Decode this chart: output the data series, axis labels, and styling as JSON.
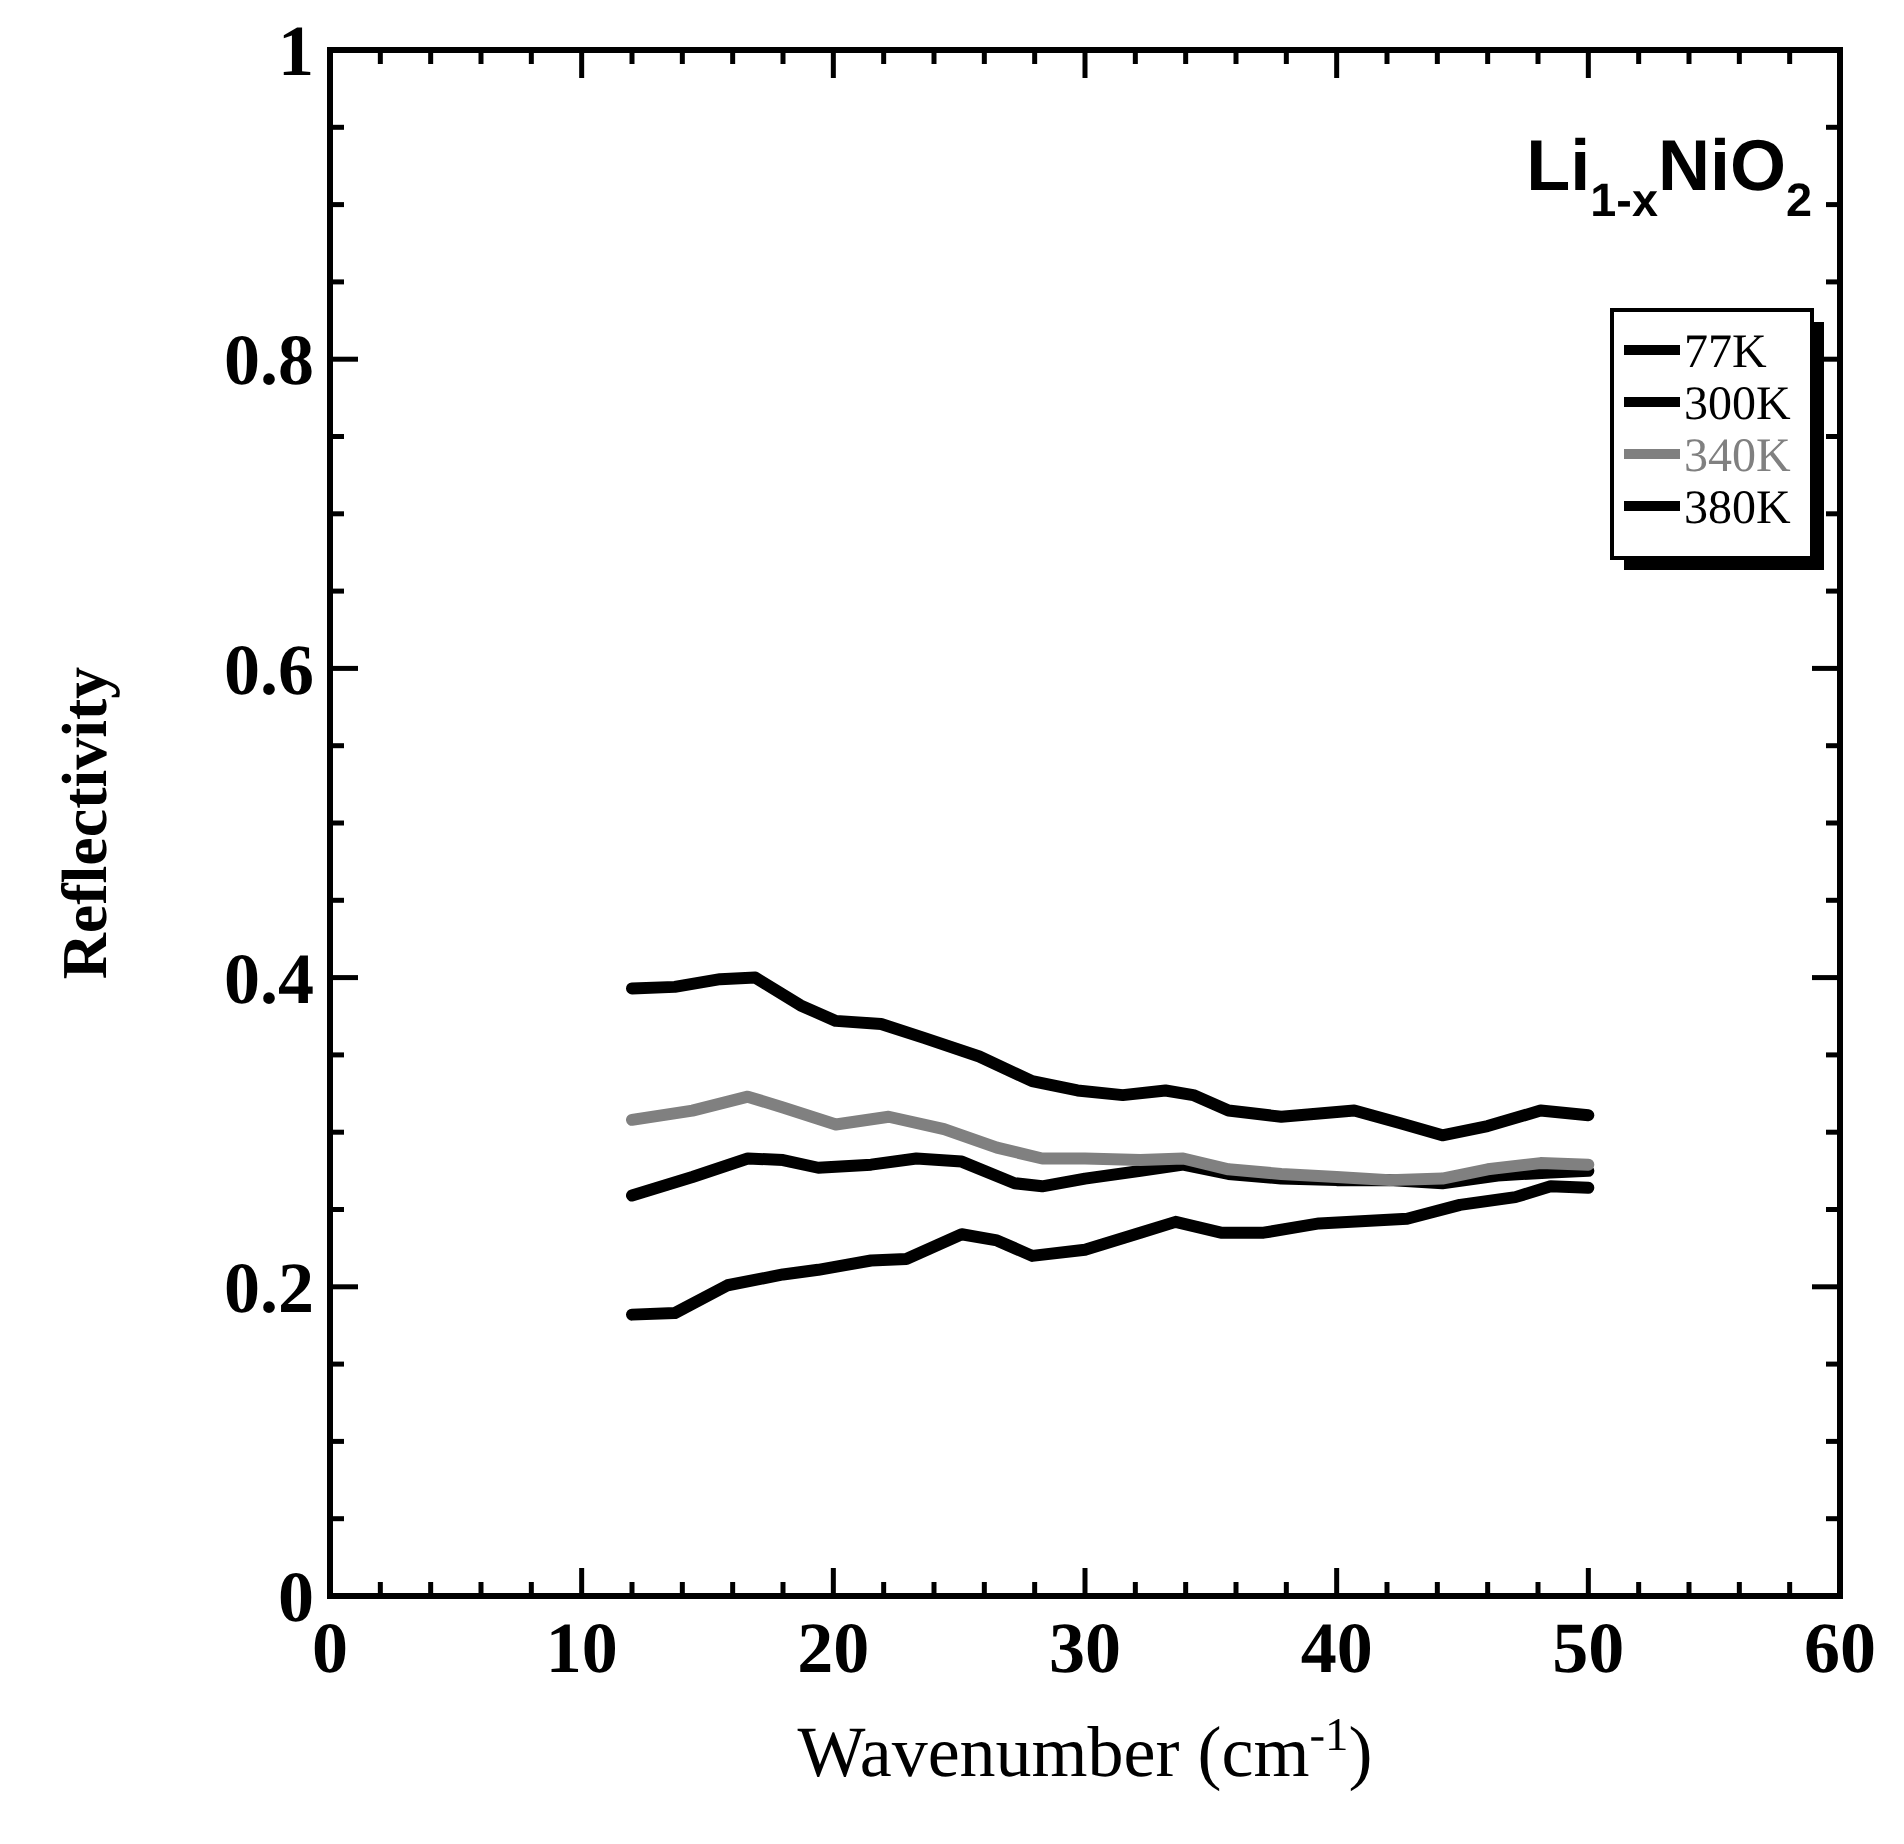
{
  "chart_data": {
    "type": "line",
    "xlabel": "Wavenumber  (cm$^{-1}$)",
    "ylabel": "Reflectivity",
    "annotations": [
      "Li$_{1-x}$NiO$_{2}$"
    ],
    "xlim": [
      0,
      60
    ],
    "ylim": [
      0,
      1
    ],
    "xticks": [
      0,
      {
        "value": 2,
        "label": null
      },
      {
        "value": 4,
        "label": null
      },
      {
        "value": 6,
        "label": null
      },
      {
        "value": 8,
        "label": null
      },
      10,
      {
        "value": 12,
        "label": null
      },
      {
        "value": 14,
        "label": null
      },
      {
        "value": 16,
        "label": null
      },
      {
        "value": 18,
        "label": null
      },
      20,
      {
        "value": 22,
        "label": null
      },
      {
        "value": 24,
        "label": null
      },
      {
        "value": 26,
        "label": null
      },
      {
        "value": 28,
        "label": null
      },
      30,
      {
        "value": 32,
        "label": null
      },
      {
        "value": 34,
        "label": null
      },
      {
        "value": 36,
        "label": null
      },
      {
        "value": 38,
        "label": null
      },
      40,
      {
        "value": 42,
        "label": null
      },
      {
        "value": 44,
        "label": null
      },
      {
        "value": 46,
        "label": null
      },
      {
        "value": 48,
        "label": null
      },
      50,
      {
        "value": 52,
        "label": null
      },
      {
        "value": 54,
        "label": null
      },
      {
        "value": 56,
        "label": null
      },
      {
        "value": 58,
        "label": null
      },
      60
    ],
    "yticks": [
      0,
      {
        "value": 0.05,
        "label": null
      },
      {
        "value": 0.1,
        "label": null
      },
      {
        "value": 0.15,
        "label": null
      },
      0.2,
      {
        "value": 0.25,
        "label": null
      },
      {
        "value": 0.3,
        "label": null
      },
      {
        "value": 0.35,
        "label": null
      },
      0.4,
      {
        "value": 0.45,
        "label": null
      },
      {
        "value": 0.5,
        "label": null
      },
      {
        "value": 0.55,
        "label": null
      },
      0.6,
      {
        "value": 0.65,
        "label": null
      },
      {
        "value": 0.7,
        "label": null
      },
      {
        "value": 0.75,
        "label": null
      },
      0.8,
      {
        "value": 0.85,
        "label": null
      },
      {
        "value": 0.9,
        "label": null
      },
      {
        "value": 0.95,
        "label": null
      },
      1
    ],
    "grid": false,
    "legend": "top right",
    "line_style": "solid",
    "series": [
      {
        "name": "77K",
        "color": "#000000",
        "x": [
          12,
          13.7,
          15.5,
          16.9,
          18.7,
          20.1,
          21.9,
          23.6,
          25.8,
          27.9,
          29.7,
          31.5,
          33.2,
          34.3,
          35.7,
          37.8,
          40.7,
          42.5,
          44.2,
          46.0,
          48.1,
          50
        ],
        "values": [
          0.393,
          0.394,
          0.399,
          0.4,
          0.382,
          0.372,
          0.37,
          0.361,
          0.349,
          0.333,
          0.327,
          0.324,
          0.327,
          0.324,
          0.314,
          0.31,
          0.314,
          0.306,
          0.298,
          0.304,
          0.314,
          0.311
        ]
      },
      {
        "name": "300K",
        "color": "#000000",
        "x": [
          12,
          14.4,
          16.6,
          18.0,
          19.4,
          21.5,
          23.3,
          25.1,
          27.2,
          28.3,
          30.0,
          32.2,
          33.9,
          35.7,
          37.8,
          40.0,
          42.1,
          44.2,
          46.4,
          48.5,
          50
        ],
        "values": [
          0.259,
          0.271,
          0.283,
          0.282,
          0.277,
          0.279,
          0.283,
          0.281,
          0.267,
          0.265,
          0.27,
          0.275,
          0.279,
          0.273,
          0.27,
          0.269,
          0.269,
          0.267,
          0.272,
          0.274,
          0.275
        ]
      },
      {
        "name": "340K",
        "color": "#808080",
        "x": [
          12,
          14.4,
          16.6,
          18.0,
          20.1,
          22.2,
          24.4,
          26.5,
          28.3,
          30.0,
          32.2,
          33.9,
          35.7,
          37.8,
          40.0,
          42.1,
          44.2,
          46.0,
          48.1,
          50
        ],
        "values": [
          0.308,
          0.314,
          0.323,
          0.316,
          0.305,
          0.31,
          0.302,
          0.29,
          0.283,
          0.283,
          0.282,
          0.283,
          0.276,
          0.273,
          0.271,
          0.269,
          0.27,
          0.276,
          0.28,
          0.279
        ]
      },
      {
        "name": "380K",
        "color": "#000000",
        "x": [
          12,
          13.7,
          15.8,
          18.0,
          19.4,
          21.5,
          22.9,
          25.1,
          26.5,
          27.9,
          30.0,
          32.2,
          33.6,
          35.4,
          37.1,
          39.3,
          42.8,
          44.9,
          47.1,
          48.5,
          50
        ],
        "values": [
          0.182,
          0.183,
          0.201,
          0.208,
          0.211,
          0.217,
          0.218,
          0.234,
          0.23,
          0.22,
          0.224,
          0.235,
          0.242,
          0.235,
          0.235,
          0.241,
          0.244,
          0.253,
          0.258,
          0.265,
          0.264
        ]
      }
    ]
  }
}
